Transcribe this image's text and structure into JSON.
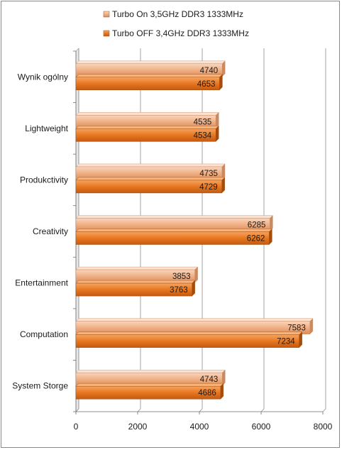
{
  "chart_data": {
    "type": "bar",
    "orientation": "horizontal",
    "categories": [
      "Wynik ogólny",
      "Lightweight",
      "Produkctivity",
      "Creativity",
      "Entertainment",
      "Computation",
      "System Storge"
    ],
    "series": [
      {
        "name": "Turbo On 3,5GHz DDR3 1333MHz",
        "color": "#f2b48c",
        "values": [
          4740,
          4535,
          4735,
          6285,
          3853,
          7583,
          4743
        ]
      },
      {
        "name": "Turbo OFF 3,4GHz DDR3 1333MHz",
        "color": "#e8761e",
        "values": [
          4653,
          4534,
          4729,
          6262,
          3763,
          7234,
          4686
        ]
      }
    ],
    "xlim": [
      0,
      8000
    ],
    "xticks": [
      "0",
      "2000",
      "4000",
      "6000",
      "8000"
    ],
    "grid": true,
    "legend_position": "top",
    "data_labels": true
  }
}
